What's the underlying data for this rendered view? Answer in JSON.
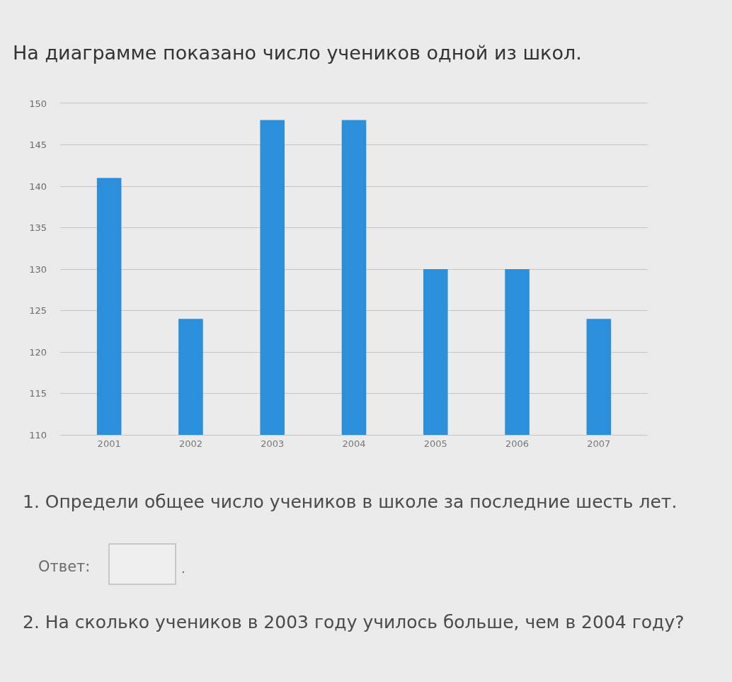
{
  "chart_data": {
    "type": "bar",
    "title": "На диаграмме показано число учеников одной из школ.",
    "categories": [
      "2001",
      "2002",
      "2003",
      "2004",
      "2005",
      "2006",
      "2007"
    ],
    "values": [
      141,
      124,
      148,
      148,
      130,
      130,
      124
    ],
    "color": "#2b8fdc",
    "ylim": [
      110,
      150
    ],
    "yticks": [
      110,
      115,
      120,
      125,
      130,
      135,
      140,
      145,
      150
    ],
    "grid": "y",
    "annotations": [
      "1. Определи общее число учеников в школе за последние шесть лет.",
      "Ответ:",
      ".",
      "2. На сколько учеников в 2003 году училось больше, чем в 2004 году?"
    ]
  }
}
